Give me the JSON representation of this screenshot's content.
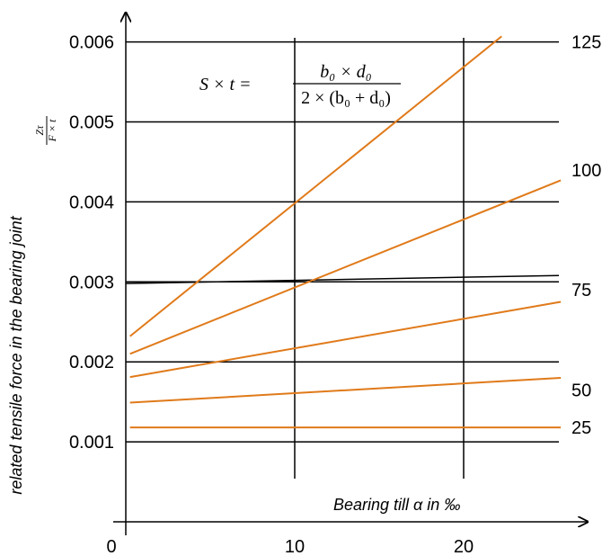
{
  "chart_data": {
    "type": "line",
    "ylabel": "related tensile force in the bearing joint",
    "ylabel_fraction": {
      "numerator": "Zτ",
      "denominator": "F × t"
    },
    "xlabel": "Bearing till α in ‰",
    "formula": {
      "lhs": "S × t =",
      "numerator": "b₀ × d₀",
      "denominator": "2 × (b₀ + d₀)"
    },
    "x_ticks": [
      "0",
      "10",
      "20"
    ],
    "y_ticks": [
      "0.001",
      "0.002",
      "0.003",
      "0.004",
      "0.005",
      "0.006"
    ],
    "xlim": [
      0,
      25.5
    ],
    "ylim": [
      0,
      0.0064
    ],
    "grid": {
      "horizontal": [
        0.001,
        0.002,
        0.003,
        0.004,
        0.005,
        0.006
      ],
      "vertical": [
        10,
        20
      ],
      "reference_line": {
        "x": [
          0,
          25.5
        ],
        "y": [
          0.00298,
          0.00308
        ]
      }
    },
    "series": [
      {
        "name": "125",
        "x": [
          0,
          22
        ],
        "y": [
          0.00232,
          0.00607
        ]
      },
      {
        "name": "100",
        "x": [
          0,
          25.5
        ],
        "y": [
          0.0021,
          0.00427
        ]
      },
      {
        "name": "75",
        "x": [
          0,
          25.5
        ],
        "y": [
          0.00181,
          0.00275
        ]
      },
      {
        "name": "50",
        "x": [
          0,
          25.5
        ],
        "y": [
          0.00149,
          0.0018
        ]
      },
      {
        "name": "25",
        "x": [
          0,
          25.5
        ],
        "y": [
          0.00118,
          0.00118
        ]
      }
    ],
    "colors": {
      "series": "#e07a1a",
      "grid": "#000000"
    }
  }
}
